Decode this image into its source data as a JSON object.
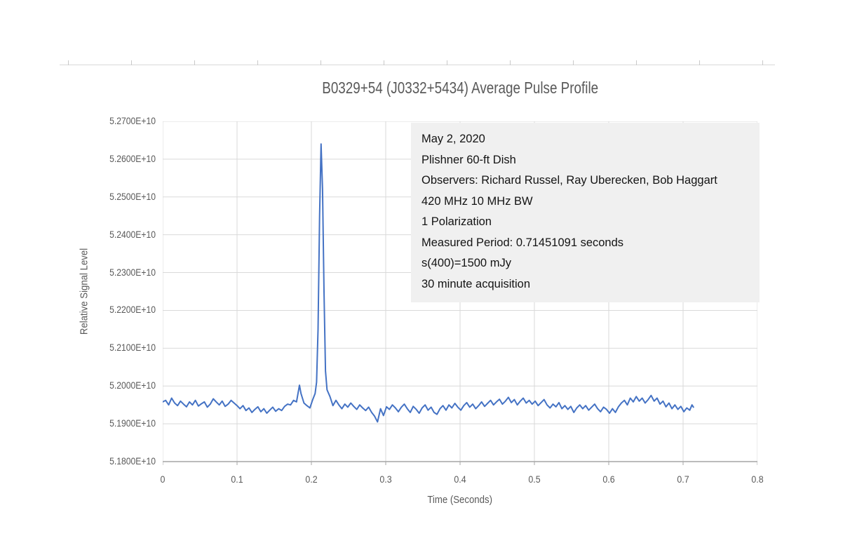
{
  "title": "B0329+54 (J0332+5434) Average Pulse Profile",
  "colors": {
    "series_line": "#4472C4",
    "gridline": "#d9d9d9",
    "axis_line": "#a6a6a6",
    "tick_label": "#595959",
    "title_text": "#595959",
    "annotation_bg": "#f0f0f0",
    "annotation_text": "#141414"
  },
  "chart_data": {
    "type": "line",
    "title": "B0329+54 (J0332+5434) Average Pulse Profile",
    "xlabel": "Time (Seconds)",
    "ylabel": "Relative Signal Level",
    "xlim": [
      0,
      0.8
    ],
    "ylim": [
      51800000000,
      52700000000
    ],
    "grid": true,
    "legend": "none",
    "x_tick_values": [
      0,
      0.1,
      0.2,
      0.3,
      0.4,
      0.5,
      0.6,
      0.7,
      0.8
    ],
    "x_tick_labels": [
      "0",
      "0.1",
      "0.2",
      "0.3",
      "0.4",
      "0.5",
      "0.6",
      "0.7",
      "0.8"
    ],
    "y_tick_values": [
      5.18,
      5.19,
      5.2,
      5.21,
      5.22,
      5.23,
      5.24,
      5.25,
      5.26,
      5.27
    ],
    "y_tick_labels": [
      "5.1800E+10",
      "5.1900E+10",
      "5.2000E+10",
      "5.2100E+10",
      "5.2200E+10",
      "5.2300E+10",
      "5.2400E+10",
      "5.2500E+10",
      "5.2600E+10",
      "5.2700E+10"
    ],
    "y_values_unit": "x1e10",
    "annotation_box": {
      "lines": [
        "May 2, 2020",
        "Plishner 60-ft Dish",
        "Observers: Richard Russel, Ray Uberecken, Bob Haggart",
        "420 MHz 10 MHz BW",
        "1 Polarization",
        "Measured Period: 0.71451091 seconds",
        "s(400)=1500 mJy",
        "30 minute acquisition"
      ]
    },
    "series": [
      {
        "name": "average pulse profile",
        "color": "#4472C4",
        "peak": {
          "x": 0.213,
          "y": 5.264
        },
        "points": [
          [
            0.0,
            5.1958
          ],
          [
            0.004,
            5.1962
          ],
          [
            0.008,
            5.195
          ],
          [
            0.012,
            5.1968
          ],
          [
            0.016,
            5.1955
          ],
          [
            0.02,
            5.1948
          ],
          [
            0.024,
            5.196
          ],
          [
            0.028,
            5.1952
          ],
          [
            0.032,
            5.1945
          ],
          [
            0.036,
            5.1958
          ],
          [
            0.04,
            5.195
          ],
          [
            0.044,
            5.1962
          ],
          [
            0.048,
            5.1947
          ],
          [
            0.052,
            5.1953
          ],
          [
            0.056,
            5.1958
          ],
          [
            0.06,
            5.1944
          ],
          [
            0.064,
            5.1952
          ],
          [
            0.068,
            5.1966
          ],
          [
            0.072,
            5.1958
          ],
          [
            0.076,
            5.195
          ],
          [
            0.08,
            5.196
          ],
          [
            0.084,
            5.1946
          ],
          [
            0.088,
            5.1952
          ],
          [
            0.092,
            5.1962
          ],
          [
            0.096,
            5.1955
          ],
          [
            0.1,
            5.1948
          ],
          [
            0.104,
            5.194
          ],
          [
            0.108,
            5.1948
          ],
          [
            0.112,
            5.1935
          ],
          [
            0.116,
            5.1942
          ],
          [
            0.12,
            5.193
          ],
          [
            0.124,
            5.1938
          ],
          [
            0.128,
            5.1945
          ],
          [
            0.132,
            5.1932
          ],
          [
            0.136,
            5.194
          ],
          [
            0.14,
            5.1928
          ],
          [
            0.144,
            5.1936
          ],
          [
            0.148,
            5.1944
          ],
          [
            0.152,
            5.1933
          ],
          [
            0.156,
            5.194
          ],
          [
            0.16,
            5.1935
          ],
          [
            0.164,
            5.1946
          ],
          [
            0.168,
            5.1952
          ],
          [
            0.172,
            5.195
          ],
          [
            0.176,
            5.1962
          ],
          [
            0.18,
            5.1958
          ],
          [
            0.184,
            5.2002
          ],
          [
            0.186,
            5.198
          ],
          [
            0.19,
            5.1955
          ],
          [
            0.194,
            5.1948
          ],
          [
            0.198,
            5.1942
          ],
          [
            0.202,
            5.1965
          ],
          [
            0.205,
            5.198
          ],
          [
            0.207,
            5.201
          ],
          [
            0.209,
            5.215
          ],
          [
            0.211,
            5.245
          ],
          [
            0.213,
            5.264
          ],
          [
            0.215,
            5.252
          ],
          [
            0.217,
            5.225
          ],
          [
            0.219,
            5.204
          ],
          [
            0.221,
            5.199
          ],
          [
            0.225,
            5.1972
          ],
          [
            0.229,
            5.1948
          ],
          [
            0.233,
            5.1962
          ],
          [
            0.237,
            5.195
          ],
          [
            0.241,
            5.194
          ],
          [
            0.245,
            5.1952
          ],
          [
            0.249,
            5.1944
          ],
          [
            0.253,
            5.1955
          ],
          [
            0.257,
            5.1946
          ],
          [
            0.261,
            5.1938
          ],
          [
            0.265,
            5.195
          ],
          [
            0.269,
            5.1942
          ],
          [
            0.273,
            5.1935
          ],
          [
            0.277,
            5.1944
          ],
          [
            0.281,
            5.193
          ],
          [
            0.285,
            5.192
          ],
          [
            0.289,
            5.1905
          ],
          [
            0.293,
            5.194
          ],
          [
            0.297,
            5.1922
          ],
          [
            0.301,
            5.1945
          ],
          [
            0.305,
            5.1938
          ],
          [
            0.309,
            5.195
          ],
          [
            0.313,
            5.1942
          ],
          [
            0.317,
            5.1932
          ],
          [
            0.321,
            5.1944
          ],
          [
            0.325,
            5.1952
          ],
          [
            0.329,
            5.194
          ],
          [
            0.333,
            5.193
          ],
          [
            0.337,
            5.1946
          ],
          [
            0.341,
            5.1938
          ],
          [
            0.345,
            5.1928
          ],
          [
            0.349,
            5.1942
          ],
          [
            0.353,
            5.195
          ],
          [
            0.357,
            5.1936
          ],
          [
            0.361,
            5.1944
          ],
          [
            0.365,
            5.193
          ],
          [
            0.369,
            5.1925
          ],
          [
            0.373,
            5.194
          ],
          [
            0.377,
            5.1948
          ],
          [
            0.381,
            5.1936
          ],
          [
            0.385,
            5.195
          ],
          [
            0.389,
            5.1942
          ],
          [
            0.393,
            5.1954
          ],
          [
            0.397,
            5.1944
          ],
          [
            0.401,
            5.1936
          ],
          [
            0.405,
            5.1948
          ],
          [
            0.409,
            5.1956
          ],
          [
            0.413,
            5.1944
          ],
          [
            0.417,
            5.1952
          ],
          [
            0.421,
            5.194
          ],
          [
            0.425,
            5.1948
          ],
          [
            0.429,
            5.1958
          ],
          [
            0.433,
            5.1946
          ],
          [
            0.437,
            5.1954
          ],
          [
            0.441,
            5.1962
          ],
          [
            0.445,
            5.195
          ],
          [
            0.449,
            5.1958
          ],
          [
            0.453,
            5.1965
          ],
          [
            0.457,
            5.1952
          ],
          [
            0.461,
            5.196
          ],
          [
            0.465,
            5.197
          ],
          [
            0.469,
            5.1956
          ],
          [
            0.473,
            5.1964
          ],
          [
            0.477,
            5.195
          ],
          [
            0.481,
            5.196
          ],
          [
            0.485,
            5.1968
          ],
          [
            0.489,
            5.1955
          ],
          [
            0.493,
            5.1962
          ],
          [
            0.497,
            5.1952
          ],
          [
            0.501,
            5.196
          ],
          [
            0.505,
            5.1948
          ],
          [
            0.509,
            5.1956
          ],
          [
            0.513,
            5.1964
          ],
          [
            0.517,
            5.195
          ],
          [
            0.521,
            5.1942
          ],
          [
            0.525,
            5.1952
          ],
          [
            0.529,
            5.1945
          ],
          [
            0.533,
            5.1956
          ],
          [
            0.537,
            5.194
          ],
          [
            0.541,
            5.1948
          ],
          [
            0.545,
            5.1938
          ],
          [
            0.549,
            5.1946
          ],
          [
            0.553,
            5.193
          ],
          [
            0.557,
            5.1942
          ],
          [
            0.561,
            5.195
          ],
          [
            0.565,
            5.194
          ],
          [
            0.569,
            5.1948
          ],
          [
            0.573,
            5.1936
          ],
          [
            0.577,
            5.1944
          ],
          [
            0.581,
            5.1952
          ],
          [
            0.585,
            5.194
          ],
          [
            0.589,
            5.1932
          ],
          [
            0.593,
            5.1944
          ],
          [
            0.597,
            5.1938
          ],
          [
            0.601,
            5.1928
          ],
          [
            0.605,
            5.194
          ],
          [
            0.609,
            5.193
          ],
          [
            0.613,
            5.1945
          ],
          [
            0.617,
            5.1955
          ],
          [
            0.621,
            5.1962
          ],
          [
            0.625,
            5.195
          ],
          [
            0.629,
            5.1968
          ],
          [
            0.633,
            5.1958
          ],
          [
            0.637,
            5.1972
          ],
          [
            0.641,
            5.196
          ],
          [
            0.645,
            5.1968
          ],
          [
            0.649,
            5.1955
          ],
          [
            0.653,
            5.1964
          ],
          [
            0.657,
            5.1975
          ],
          [
            0.661,
            5.196
          ],
          [
            0.665,
            5.1968
          ],
          [
            0.669,
            5.1952
          ],
          [
            0.673,
            5.196
          ],
          [
            0.677,
            5.1945
          ],
          [
            0.681,
            5.1955
          ],
          [
            0.685,
            5.194
          ],
          [
            0.689,
            5.195
          ],
          [
            0.693,
            5.1938
          ],
          [
            0.697,
            5.1946
          ],
          [
            0.701,
            5.1932
          ],
          [
            0.705,
            5.1942
          ],
          [
            0.709,
            5.1936
          ],
          [
            0.712,
            5.195
          ],
          [
            0.714,
            5.1944
          ]
        ]
      }
    ]
  }
}
